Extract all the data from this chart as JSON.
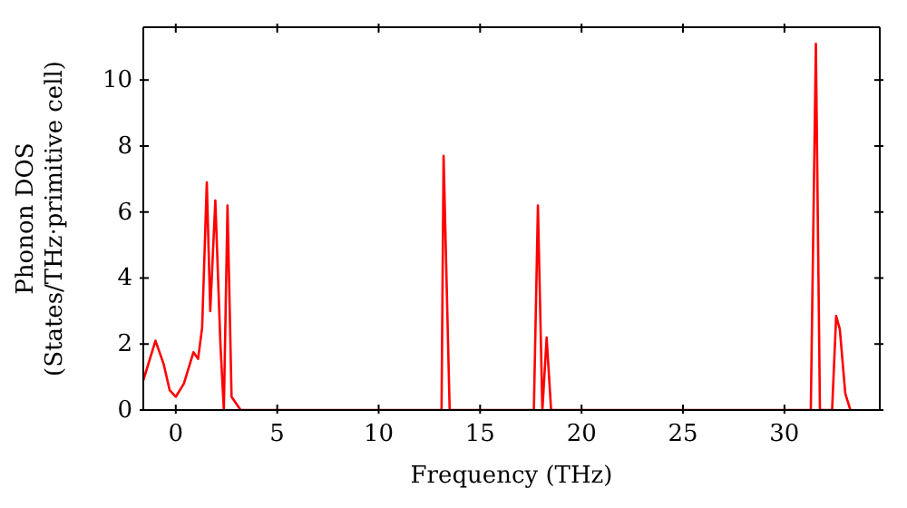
{
  "chart_data": {
    "type": "line",
    "xlabel": "Frequency (THz)",
    "ylabel": "Phonon DOS\n(States/THz·primitive cell)",
    "x": [
      -1.6,
      -1.0,
      -0.6,
      -0.3,
      0,
      0.4,
      0.87,
      1.1,
      1.3,
      1.53,
      1.7,
      1.95,
      2.2,
      2.37,
      2.55,
      2.75,
      3.2,
      13.1,
      13.2,
      13.5,
      17.65,
      17.85,
      18.07,
      18.28,
      18.5,
      31.3,
      31.55,
      31.75,
      32.35,
      32.55,
      32.73,
      33.0,
      33.25
    ],
    "series": [
      {
        "color": "#ff0000",
        "values": [
          0.9,
          2.1,
          1.4,
          0.6,
          0.4,
          0.8,
          1.75,
          1.55,
          2.5,
          6.9,
          3.0,
          6.35,
          2.0,
          0,
          6.2,
          0.4,
          0,
          0,
          7.7,
          0,
          0,
          6.2,
          0,
          2.2,
          0,
          0,
          11.1,
          0,
          0,
          2.85,
          2.45,
          0.5,
          0
        ]
      }
    ],
    "xlim": [
      -1.6,
      34.7
    ],
    "ylim": [
      0,
      11.6
    ],
    "xticks": [
      0,
      5,
      10,
      15,
      20,
      25,
      30
    ],
    "yticks": [
      0,
      2,
      4,
      6,
      8,
      10
    ],
    "grid": false,
    "legend": false,
    "marker": "none",
    "line_style": "solid"
  }
}
